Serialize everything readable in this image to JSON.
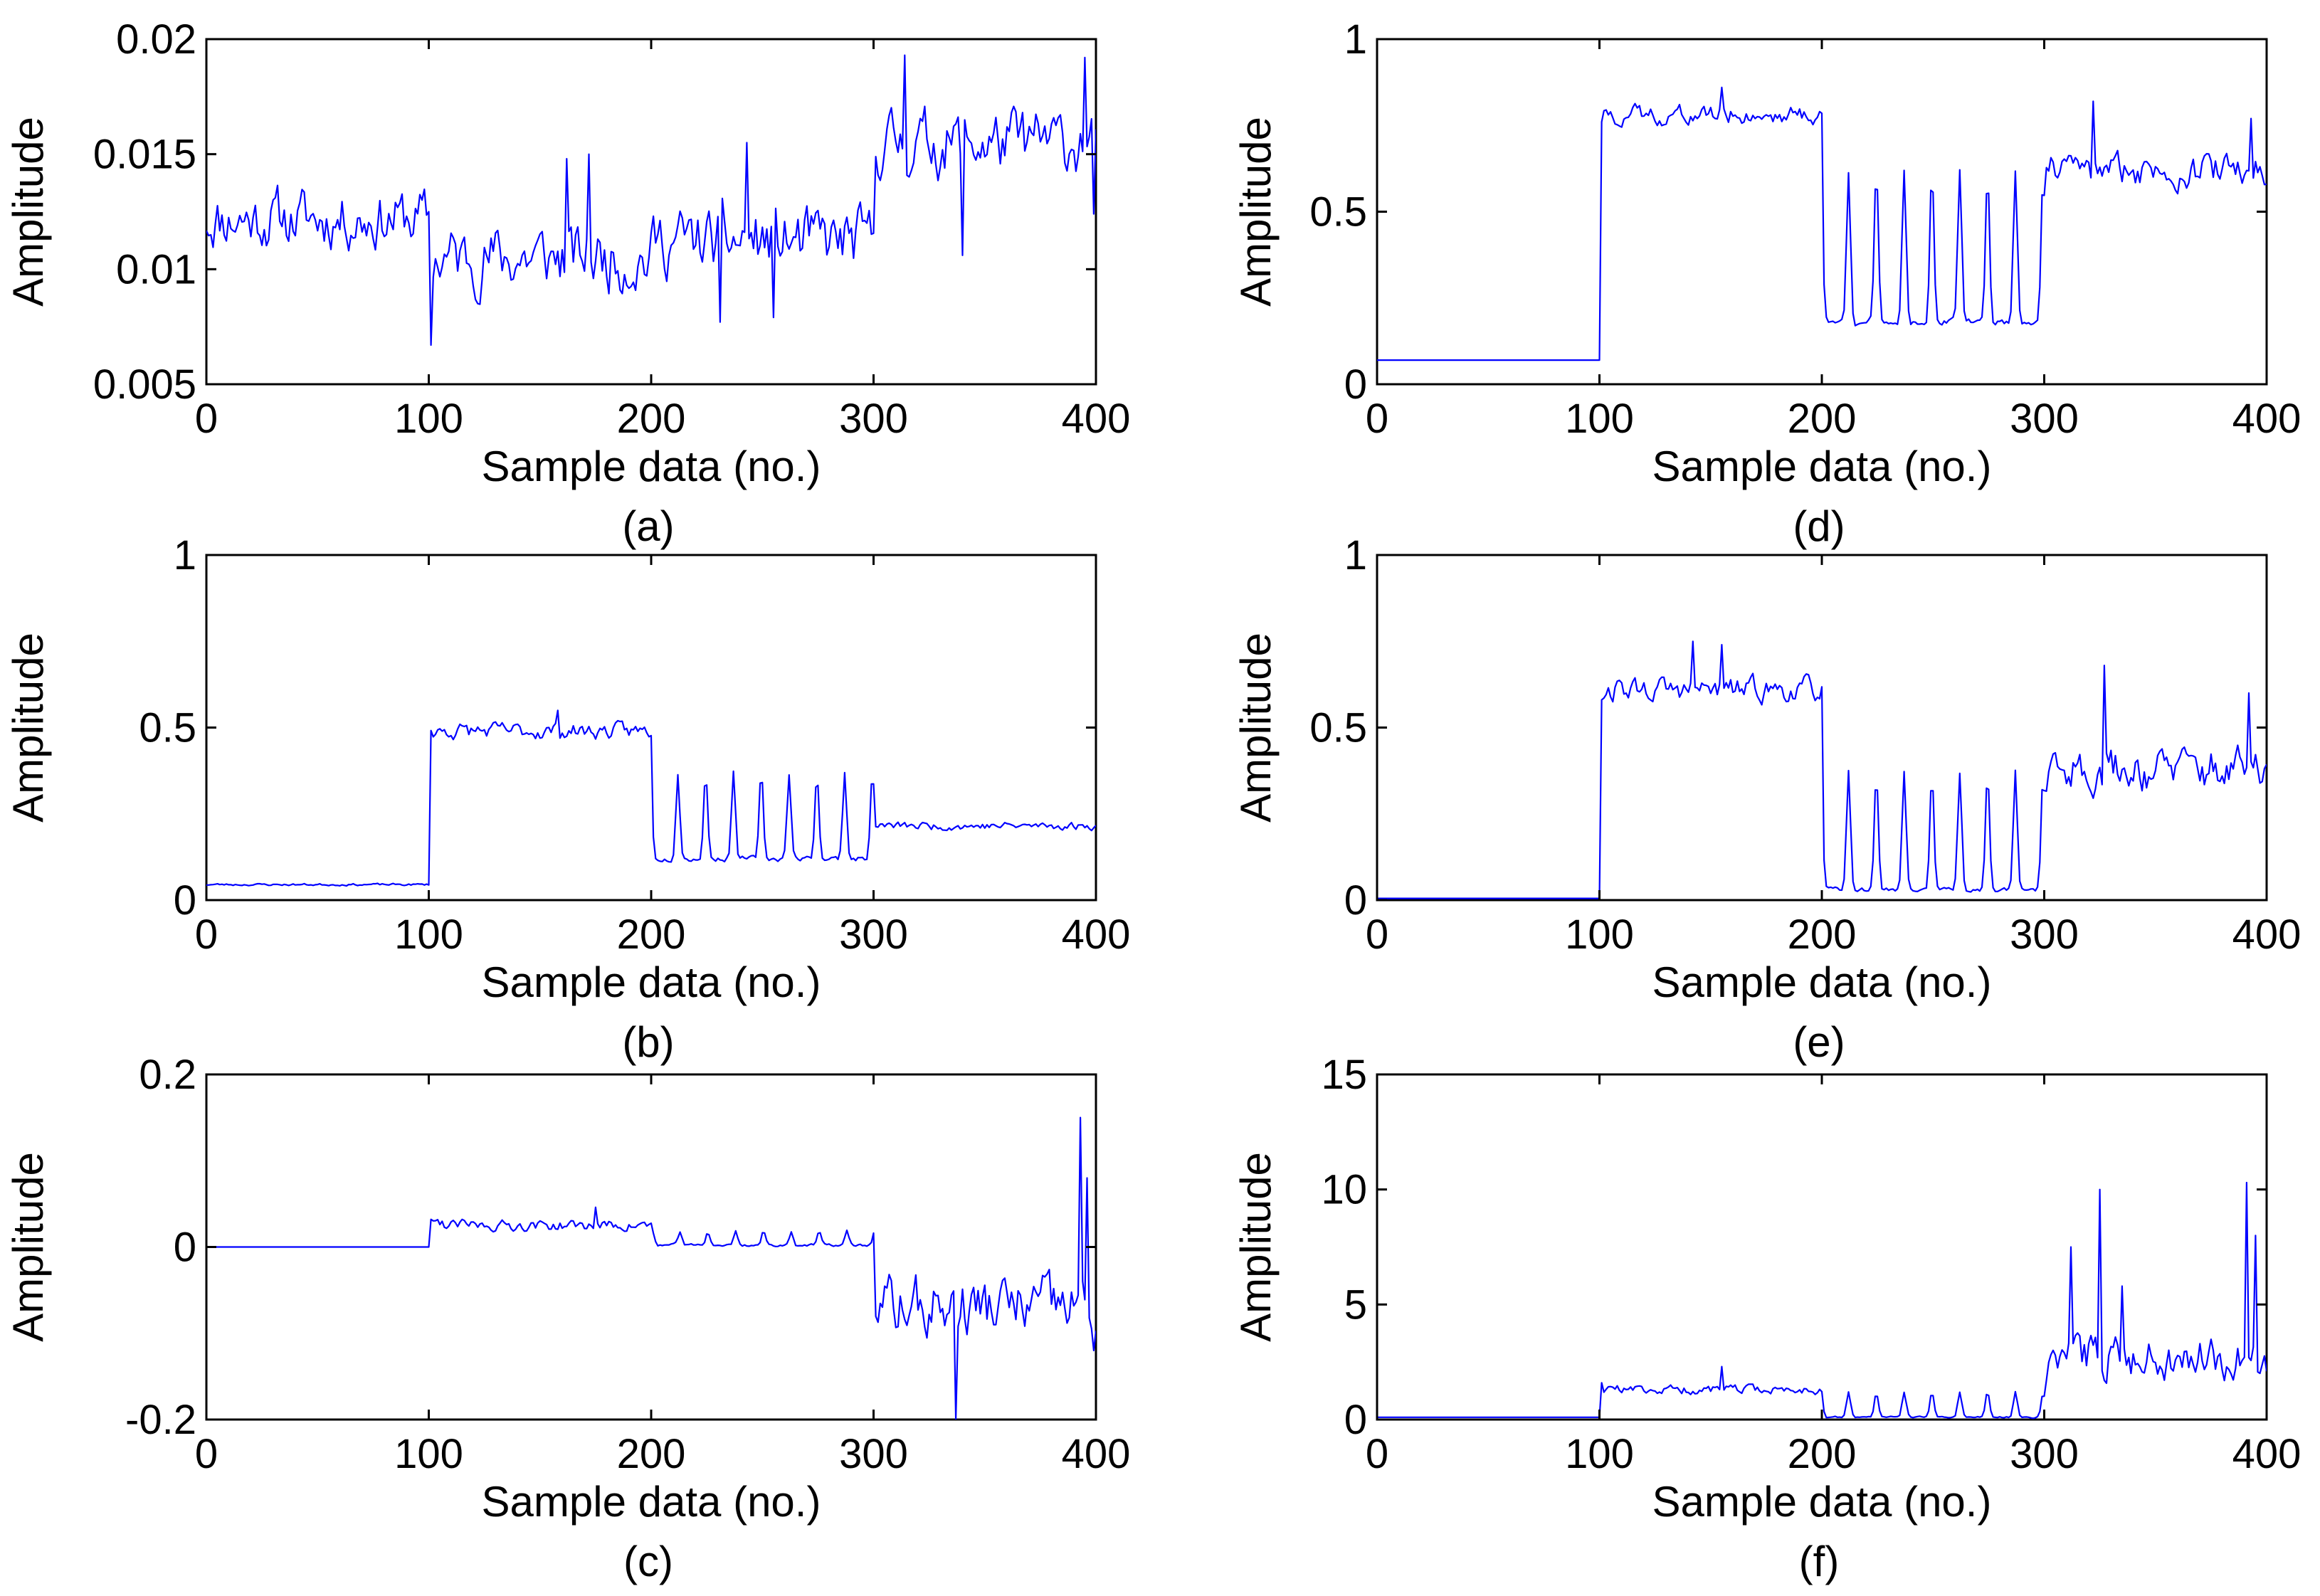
{
  "colors": {
    "line": "#0000FF",
    "axis": "#000000",
    "background": "#FFFFFF"
  },
  "chart_data": [
    {
      "id": "a",
      "type": "line",
      "caption": "(a)",
      "xlabel": "Sample data (no.)",
      "ylabel": "Amplitude",
      "xlim": [
        0,
        400
      ],
      "ylim": [
        0.005,
        0.02
      ],
      "xticks": [
        0,
        100,
        200,
        300,
        400
      ],
      "xtick_labels": [
        "0",
        "100",
        "200",
        "300",
        "400"
      ],
      "yticks": [
        0.005,
        0.01,
        0.015,
        0.02
      ],
      "ytick_labels": [
        "0.005",
        "0.01",
        "0.015",
        "0.02"
      ],
      "segments": [
        {
          "from": 0,
          "to": 100,
          "base": 0.0122,
          "noise": 0.0016,
          "spikes": []
        },
        {
          "from": 100,
          "to": 200,
          "base": 0.0105,
          "noise": 0.0018,
          "spikes": [
            [
              101,
              0.0067
            ],
            [
              172,
              0.015
            ],
            [
              162,
              0.0148
            ]
          ]
        },
        {
          "from": 200,
          "to": 300,
          "base": 0.0112,
          "noise": 0.0018,
          "spikes": [
            [
              231,
              0.0077
            ],
            [
              243,
              0.0155
            ],
            [
              255,
              0.0079
            ]
          ]
        },
        {
          "from": 300,
          "to": 400,
          "base": 0.0155,
          "noise": 0.0018,
          "spikes": [
            [
              314,
              0.0193
            ],
            [
              340,
              0.0106
            ],
            [
              395,
              0.0192
            ],
            [
              399,
              0.0124
            ]
          ]
        }
      ],
      "seed": 11,
      "gridlines": false
    },
    {
      "id": "b",
      "type": "line",
      "caption": "(b)",
      "xlabel": "Sample data (no.)",
      "ylabel": "Amplitude",
      "xlim": [
        0,
        400
      ],
      "ylim": [
        0,
        1
      ],
      "xticks": [
        0,
        100,
        200,
        300,
        400
      ],
      "xtick_labels": [
        "0",
        "100",
        "200",
        "300",
        "400"
      ],
      "yticks": [
        0,
        0.5,
        1
      ],
      "ytick_labels": [
        "0",
        "0.5",
        "1"
      ],
      "segments": [
        {
          "from": 0,
          "to": 100,
          "base": 0.045,
          "noise": 0.004,
          "spikes": []
        },
        {
          "from": 100,
          "to": 200,
          "base": 0.49,
          "noise": 0.03,
          "spikes": [
            [
              158,
              0.55
            ]
          ]
        },
        {
          "from": 200,
          "to": 300,
          "base": 0.12,
          "noise": 0.01,
          "peaks": {
            "period": 12.5,
            "offset": 212,
            "height": 0.37
          }
        },
        {
          "from": 300,
          "to": 400,
          "base": 0.215,
          "noise": 0.015,
          "spikes": []
        }
      ],
      "seed": 23,
      "gridlines": false
    },
    {
      "id": "c",
      "type": "line",
      "caption": "(c)",
      "xlabel": "Sample data (no.)",
      "ylabel": "Amplitude",
      "xlim": [
        0,
        400
      ],
      "ylim": [
        -0.2,
        0.2
      ],
      "xticks": [
        0,
        100,
        200,
        300,
        400
      ],
      "xtick_labels": [
        "0",
        "100",
        "200",
        "300",
        "400"
      ],
      "yticks": [
        -0.2,
        0,
        0.2
      ],
      "ytick_labels": [
        "-0.2",
        "0",
        "0.2"
      ],
      "segments": [
        {
          "from": 0,
          "to": 100,
          "base": 0.0,
          "noise": 0.0,
          "spikes": []
        },
        {
          "from": 100,
          "to": 200,
          "base": 0.025,
          "noise": 0.008,
          "spikes": [
            [
              101,
              0.032
            ],
            [
              175,
              0.046
            ]
          ]
        },
        {
          "from": 200,
          "to": 300,
          "base": 0.002,
          "noise": 0.002,
          "peaks": {
            "period": 12.5,
            "offset": 213,
            "height": 0.018
          }
        },
        {
          "from": 300,
          "to": 400,
          "base": -0.07,
          "noise": 0.045,
          "spikes": [
            [
              337,
              -0.2
            ],
            [
              393,
              0.15
            ],
            [
              396,
              0.08
            ],
            [
              399,
              -0.12
            ]
          ]
        }
      ],
      "seed": 37,
      "gridlines": false
    },
    {
      "id": "d",
      "type": "line",
      "caption": "(d)",
      "xlabel": "Sample data (no.)",
      "ylabel": "Amplitude",
      "xlim": [
        0,
        400
      ],
      "ylim": [
        0,
        1
      ],
      "xticks": [
        0,
        100,
        200,
        300,
        400
      ],
      "xtick_labels": [
        "0",
        "100",
        "200",
        "300",
        "400"
      ],
      "yticks": [
        0,
        0.5,
        1
      ],
      "ytick_labels": [
        "0",
        "0.5",
        "1"
      ],
      "segments": [
        {
          "from": 0,
          "to": 100,
          "base": 0.07,
          "noise": 0.0,
          "spikes": []
        },
        {
          "from": 100,
          "to": 200,
          "base": 0.78,
          "noise": 0.035,
          "spikes": [
            [
              101,
              0.76
            ],
            [
              155,
              0.86
            ]
          ]
        },
        {
          "from": 200,
          "to": 300,
          "base": 0.18,
          "noise": 0.012,
          "peaks": {
            "period": 12.5,
            "offset": 212,
            "height": 0.62
          }
        },
        {
          "from": 300,
          "to": 400,
          "base": 0.62,
          "noise": 0.06,
          "spikes": [
            [
              322,
              0.82
            ],
            [
              393,
              0.77
            ]
          ]
        }
      ],
      "seed": 41,
      "gridlines": false
    },
    {
      "id": "e",
      "type": "line",
      "caption": "(e)",
      "xlabel": "Sample data (no.)",
      "ylabel": "Amplitude",
      "xlim": [
        0,
        400
      ],
      "ylim": [
        0,
        1
      ],
      "xticks": [
        0,
        100,
        200,
        300,
        400
      ],
      "xtick_labels": [
        "0",
        "100",
        "200",
        "300",
        "400"
      ],
      "yticks": [
        0,
        0.5,
        1
      ],
      "ytick_labels": [
        "0",
        "0.5",
        "1"
      ],
      "segments": [
        {
          "from": 0,
          "to": 100,
          "base": 0.005,
          "noise": 0.0,
          "spikes": []
        },
        {
          "from": 100,
          "to": 200,
          "base": 0.61,
          "noise": 0.045,
          "spikes": [
            [
              142,
              0.75
            ],
            [
              155,
              0.74
            ]
          ]
        },
        {
          "from": 200,
          "to": 300,
          "base": 0.03,
          "noise": 0.008,
          "peaks": {
            "period": 12.5,
            "offset": 212,
            "height": 0.37
          }
        },
        {
          "from": 300,
          "to": 400,
          "base": 0.38,
          "noise": 0.08,
          "spikes": [
            [
              327,
              0.68
            ],
            [
              392,
              0.6
            ]
          ]
        }
      ],
      "seed": 53,
      "gridlines": false
    },
    {
      "id": "f",
      "type": "line",
      "caption": "(f)",
      "xlabel": "Sample data (no.)",
      "ylabel": "Amplitude",
      "xlim": [
        0,
        400
      ],
      "ylim": [
        0,
        15
      ],
      "xticks": [
        0,
        100,
        200,
        300,
        400
      ],
      "xtick_labels": [
        "0",
        "100",
        "200",
        "300",
        "400"
      ],
      "yticks": [
        0,
        5,
        10,
        15
      ],
      "ytick_labels": [
        "0",
        "5",
        "10",
        "15"
      ],
      "segments": [
        {
          "from": 0,
          "to": 100,
          "base": 0.1,
          "noise": 0.0,
          "spikes": []
        },
        {
          "from": 100,
          "to": 200,
          "base": 1.3,
          "noise": 0.25,
          "spikes": [
            [
              101,
              1.6
            ],
            [
              155,
              2.3
            ]
          ]
        },
        {
          "from": 200,
          "to": 300,
          "base": 0.1,
          "noise": 0.05,
          "peaks": {
            "period": 12.5,
            "offset": 212,
            "height": 1.2
          }
        },
        {
          "from": 300,
          "to": 400,
          "base": 2.8,
          "noise": 1.2,
          "spikes": [
            [
              312,
              7.5
            ],
            [
              325,
              10.0
            ],
            [
              335,
              5.8
            ],
            [
              391,
              10.3
            ],
            [
              395,
              8.0
            ]
          ]
        }
      ],
      "seed": 67,
      "gridlines": false
    }
  ]
}
